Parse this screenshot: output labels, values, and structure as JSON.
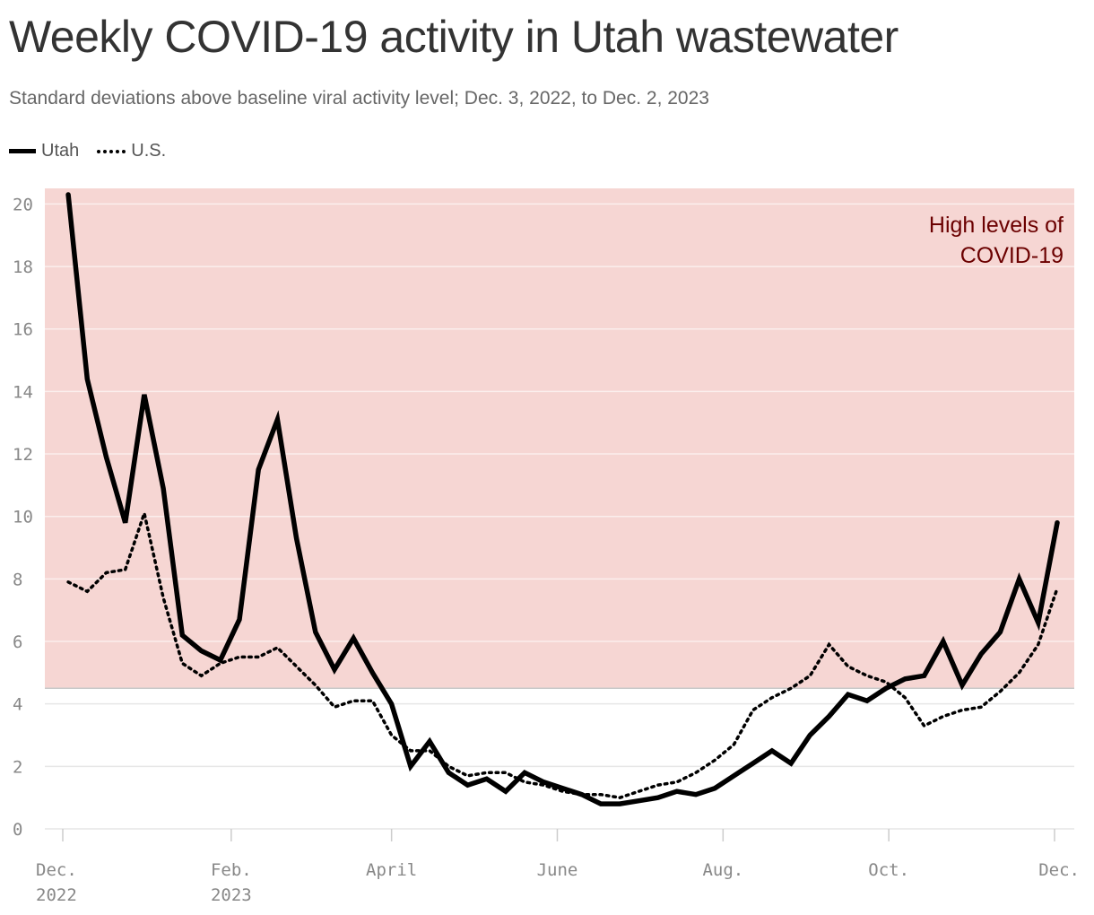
{
  "title": "Weekly COVID-19 activity in Utah wastewater",
  "subtitle": "Standard deviations above baseline viral activity level; Dec. 3, 2022, to Dec. 2, 2023",
  "legend": [
    {
      "name": "Utah",
      "style": "solid"
    },
    {
      "name": "U.S.",
      "style": "dotted"
    }
  ],
  "colors": {
    "high_zone": "#f6d6d3",
    "annotation": "#6b0000",
    "line": "#000000",
    "grid": "#e6e6e6"
  },
  "chart_data": {
    "type": "line",
    "title": "Weekly COVID-19 activity in Utah wastewater",
    "ylabel": "",
    "xlabel": "",
    "ylim": [
      0,
      20.5
    ],
    "yticks": [
      0,
      2,
      4,
      6,
      8,
      10,
      12,
      14,
      16,
      18,
      20
    ],
    "grid": true,
    "legend_position": "top-left",
    "high_threshold": 4.5,
    "annotation": {
      "line1": "High levels of",
      "line2": "COVID-19"
    },
    "x_ticks": [
      {
        "date": "2022-12-01",
        "label1": "Dec.",
        "label2": "2022"
      },
      {
        "date": "2023-02-01",
        "label1": "Feb.",
        "label2": "2023"
      },
      {
        "date": "2023-04-01",
        "label1": "April",
        "label2": ""
      },
      {
        "date": "2023-06-01",
        "label1": "June",
        "label2": ""
      },
      {
        "date": "2023-08-01",
        "label1": "Aug.",
        "label2": ""
      },
      {
        "date": "2023-10-01",
        "label1": "Oct.",
        "label2": ""
      },
      {
        "date": "2023-12-01",
        "label1": "Dec.",
        "label2": ""
      }
    ],
    "x": [
      "2022-12-03",
      "2022-12-10",
      "2022-12-17",
      "2022-12-24",
      "2022-12-31",
      "2023-01-07",
      "2023-01-14",
      "2023-01-21",
      "2023-01-28",
      "2023-02-04",
      "2023-02-11",
      "2023-02-18",
      "2023-02-25",
      "2023-03-04",
      "2023-03-11",
      "2023-03-18",
      "2023-03-25",
      "2023-04-01",
      "2023-04-08",
      "2023-04-15",
      "2023-04-22",
      "2023-04-29",
      "2023-05-06",
      "2023-05-13",
      "2023-05-20",
      "2023-05-27",
      "2023-06-03",
      "2023-06-10",
      "2023-06-17",
      "2023-06-24",
      "2023-07-01",
      "2023-07-08",
      "2023-07-15",
      "2023-07-22",
      "2023-07-29",
      "2023-08-05",
      "2023-08-12",
      "2023-08-19",
      "2023-08-26",
      "2023-09-02",
      "2023-09-09",
      "2023-09-16",
      "2023-09-23",
      "2023-09-30",
      "2023-10-07",
      "2023-10-14",
      "2023-10-21",
      "2023-10-28",
      "2023-11-04",
      "2023-11-11",
      "2023-11-18",
      "2023-11-25",
      "2023-12-02"
    ],
    "series": [
      {
        "name": "Utah",
        "style": "solid",
        "values": [
          20.3,
          14.4,
          11.9,
          9.8,
          13.9,
          10.9,
          6.2,
          5.7,
          5.4,
          6.7,
          11.5,
          13.1,
          9.3,
          6.3,
          5.1,
          6.1,
          5.0,
          4.0,
          2.0,
          2.8,
          1.8,
          1.4,
          1.6,
          1.2,
          1.8,
          1.5,
          1.3,
          1.1,
          0.8,
          0.8,
          0.9,
          1.0,
          1.2,
          1.1,
          1.3,
          1.7,
          2.1,
          2.5,
          2.1,
          3.0,
          3.6,
          4.3,
          4.1,
          4.5,
          4.8,
          4.9,
          6.0,
          4.6,
          5.6,
          6.3,
          8.0,
          6.6,
          9.8
        ]
      },
      {
        "name": "U.S.",
        "style": "dotted",
        "values": [
          7.9,
          7.6,
          8.2,
          8.3,
          10.1,
          7.4,
          5.3,
          4.9,
          5.3,
          5.5,
          5.5,
          5.8,
          5.2,
          4.6,
          3.9,
          4.1,
          4.1,
          3.0,
          2.5,
          2.5,
          2.0,
          1.7,
          1.8,
          1.8,
          1.5,
          1.4,
          1.2,
          1.1,
          1.1,
          1.0,
          1.2,
          1.4,
          1.5,
          1.8,
          2.2,
          2.7,
          3.8,
          4.2,
          4.5,
          4.9,
          5.9,
          5.2,
          4.9,
          4.7,
          4.2,
          3.3,
          3.6,
          3.8,
          3.9,
          4.4,
          5.0,
          5.9,
          7.7
        ]
      }
    ]
  }
}
